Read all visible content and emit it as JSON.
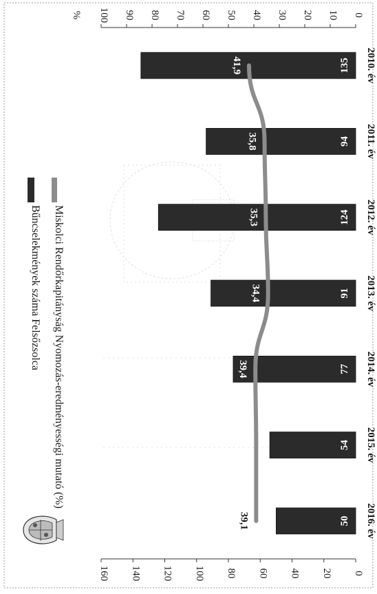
{
  "chart_data": {
    "type": "bar",
    "categories": [
      "2010. év",
      "2011. év",
      "2012. év",
      "2013. év",
      "2014. év",
      "2015. év",
      "2016. év"
    ],
    "series": [
      {
        "name": "Bűncselekmények száma Felsőzsolca",
        "kind": "bar",
        "axis": "left",
        "values": [
          135,
          94,
          124,
          91,
          77,
          54,
          50
        ],
        "labels": [
          "135",
          "94",
          "124",
          "91",
          "77",
          "54",
          "50"
        ],
        "color": "#2b2b2b"
      },
      {
        "name": "Miskolci Rendőrkapitányság Nyomozás-eredményességi mutató (%)",
        "kind": "line",
        "axis": "right",
        "values": [
          41.9,
          35.8,
          35.3,
          34.4,
          39.4,
          39.1,
          39.1
        ],
        "labels": [
          "41,9",
          "35,8",
          "35,3",
          "34,4",
          "39,4",
          "",
          "39,1"
        ],
        "color": "#8c8c8c"
      }
    ],
    "left_axis": {
      "range": [
        0,
        160
      ],
      "ticks": [
        "0",
        "20",
        "40",
        "60",
        "80",
        "100",
        "120",
        "140",
        "160"
      ]
    },
    "right_axis": {
      "unit_label": "%",
      "range": [
        0,
        100
      ],
      "ticks": [
        "0",
        "10",
        "20",
        "30",
        "40",
        "50",
        "60",
        "70",
        "80",
        "90",
        "100"
      ]
    },
    "orientation": "rotated-90-clockwise",
    "legend_position": "top"
  },
  "colors": {
    "bar": "#2b2b2b",
    "line": "#8c8c8c",
    "label_light": "#ffffff",
    "text": "#1a1a1a"
  }
}
